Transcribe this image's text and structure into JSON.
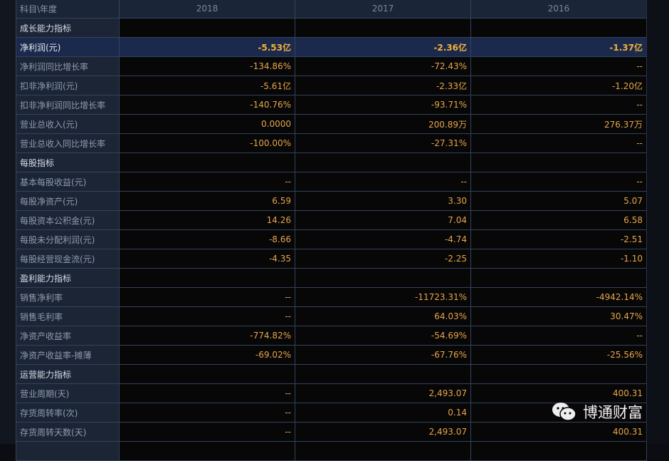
{
  "header": {
    "label": "科目\\年度",
    "years": [
      "2018",
      "2017",
      "2016"
    ]
  },
  "rows": [
    {
      "type": "section",
      "label": "成长能力指标",
      "values": [
        "",
        "",
        ""
      ]
    },
    {
      "type": "highlight",
      "label": "净利润(元)",
      "values": [
        "-5.53亿",
        "-2.36亿",
        "-1.37亿"
      ]
    },
    {
      "type": "row",
      "label": "净利润同比增长率",
      "values": [
        "-134.86%",
        "-72.43%",
        "--"
      ]
    },
    {
      "type": "row",
      "label": "扣非净利润(元)",
      "values": [
        "-5.61亿",
        "-2.33亿",
        "-1.20亿"
      ]
    },
    {
      "type": "row",
      "label": "扣非净利润同比增长率",
      "values": [
        "-140.76%",
        "-93.71%",
        "--"
      ]
    },
    {
      "type": "row",
      "label": "营业总收入(元)",
      "values": [
        "0.0000",
        "200.89万",
        "276.37万"
      ]
    },
    {
      "type": "row",
      "label": "营业总收入同比增长率",
      "values": [
        "-100.00%",
        "-27.31%",
        "--"
      ]
    },
    {
      "type": "section",
      "label": "每股指标",
      "values": [
        "",
        "",
        ""
      ]
    },
    {
      "type": "row",
      "label": "基本每股收益(元)",
      "values": [
        "--",
        "--",
        "--"
      ]
    },
    {
      "type": "row",
      "label": "每股净资产(元)",
      "values": [
        "6.59",
        "3.30",
        "5.07"
      ]
    },
    {
      "type": "row",
      "label": "每股资本公积金(元)",
      "values": [
        "14.26",
        "7.04",
        "6.58"
      ]
    },
    {
      "type": "row",
      "label": "每股未分配利润(元)",
      "values": [
        "-8.66",
        "-4.74",
        "-2.51"
      ]
    },
    {
      "type": "row",
      "label": "每股经营现金流(元)",
      "values": [
        "-4.35",
        "-2.25",
        "-1.10"
      ]
    },
    {
      "type": "section",
      "label": "盈利能力指标",
      "values": [
        "",
        "",
        ""
      ]
    },
    {
      "type": "row",
      "label": "销售净利率",
      "values": [
        "--",
        "-11723.31%",
        "-4942.14%"
      ]
    },
    {
      "type": "row",
      "label": "销售毛利率",
      "values": [
        "--",
        "64.03%",
        "30.47%"
      ]
    },
    {
      "type": "row",
      "label": "净资产收益率",
      "values": [
        "-774.82%",
        "-54.69%",
        "--"
      ]
    },
    {
      "type": "row",
      "label": "净资产收益率-摊薄",
      "values": [
        "-69.02%",
        "-67.76%",
        "-25.56%"
      ]
    },
    {
      "type": "section",
      "label": "运营能力指标",
      "values": [
        "",
        "",
        ""
      ]
    },
    {
      "type": "row",
      "label": "营业周期(天)",
      "values": [
        "--",
        "2,493.07",
        "400.31"
      ]
    },
    {
      "type": "row",
      "label": "存货周转率(次)",
      "values": [
        "--",
        "0.14",
        ""
      ]
    },
    {
      "type": "row",
      "label": "存货周转天数(天)",
      "values": [
        "--",
        "2,493.07",
        "400.31"
      ]
    },
    {
      "type": "row",
      "label": "",
      "values": [
        "",
        "",
        ""
      ]
    }
  ],
  "watermark": {
    "text": "博通财富",
    "icon": "wechat-icon"
  }
}
